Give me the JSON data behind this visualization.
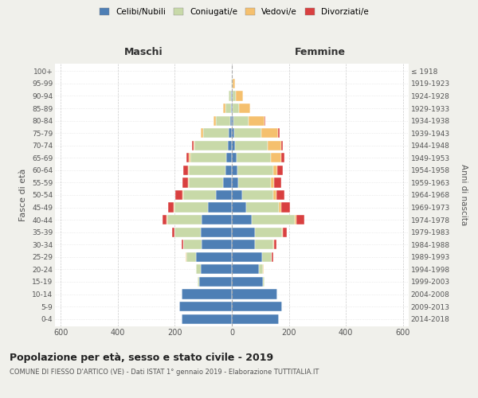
{
  "age_groups": [
    "0-4",
    "5-9",
    "10-14",
    "15-19",
    "20-24",
    "25-29",
    "30-34",
    "35-39",
    "40-44",
    "45-49",
    "50-54",
    "55-59",
    "60-64",
    "65-69",
    "70-74",
    "75-79",
    "80-84",
    "85-89",
    "90-94",
    "95-99",
    "100+"
  ],
  "birth_years": [
    "2014-2018",
    "2009-2013",
    "2004-2008",
    "1999-2003",
    "1994-1998",
    "1989-1993",
    "1984-1988",
    "1979-1983",
    "1974-1978",
    "1969-1973",
    "1964-1968",
    "1959-1963",
    "1954-1958",
    "1949-1953",
    "1944-1948",
    "1939-1943",
    "1934-1938",
    "1929-1933",
    "1924-1928",
    "1919-1923",
    "≤ 1918"
  ],
  "maschi": {
    "celibi": [
      175,
      185,
      175,
      115,
      110,
      125,
      105,
      110,
      105,
      85,
      55,
      30,
      22,
      20,
      15,
      10,
      5,
      3,
      2,
      0,
      0
    ],
    "coniugati": [
      0,
      0,
      0,
      5,
      15,
      35,
      65,
      90,
      120,
      115,
      115,
      120,
      130,
      125,
      115,
      90,
      50,
      20,
      8,
      2,
      0
    ],
    "vedovi": [
      0,
      0,
      0,
      1,
      0,
      1,
      1,
      2,
      3,
      3,
      3,
      3,
      3,
      5,
      5,
      8,
      10,
      8,
      2,
      0,
      0
    ],
    "divorziati": [
      0,
      0,
      0,
      0,
      1,
      2,
      5,
      8,
      15,
      20,
      25,
      20,
      15,
      10,
      5,
      2,
      0,
      0,
      0,
      0,
      0
    ]
  },
  "femmine": {
    "nubili": [
      165,
      175,
      160,
      110,
      95,
      105,
      80,
      80,
      70,
      50,
      35,
      22,
      20,
      18,
      12,
      8,
      5,
      2,
      2,
      0,
      0
    ],
    "coniugate": [
      0,
      0,
      0,
      5,
      15,
      35,
      65,
      95,
      150,
      115,
      110,
      115,
      125,
      120,
      115,
      95,
      55,
      22,
      12,
      3,
      0
    ],
    "vedove": [
      0,
      0,
      0,
      0,
      1,
      1,
      2,
      3,
      5,
      8,
      10,
      12,
      15,
      35,
      45,
      60,
      55,
      40,
      25,
      8,
      0
    ],
    "divorziate": [
      0,
      0,
      0,
      0,
      1,
      3,
      8,
      15,
      30,
      30,
      30,
      25,
      20,
      12,
      8,
      5,
      2,
      0,
      0,
      0,
      0
    ]
  },
  "colors": {
    "celibi_nubili": "#4e7fb5",
    "coniugati_e": "#c8d9a8",
    "vedovi_e": "#f5c06e",
    "divorziati_e": "#d94040"
  },
  "xlim": 620,
  "title": "Popolazione per età, sesso e stato civile - 2019",
  "subtitle": "COMUNE DI FIESSO D'ARTICO (VE) - Dati ISTAT 1° gennaio 2019 - Elaborazione TUTTITALIA.IT",
  "ylabel_left": "Fasce di età",
  "ylabel_right": "Anni di nascita",
  "xlabel_left": "Maschi",
  "xlabel_right": "Femmine",
  "bg_color": "#f0f0eb",
  "plot_bg": "#ffffff"
}
